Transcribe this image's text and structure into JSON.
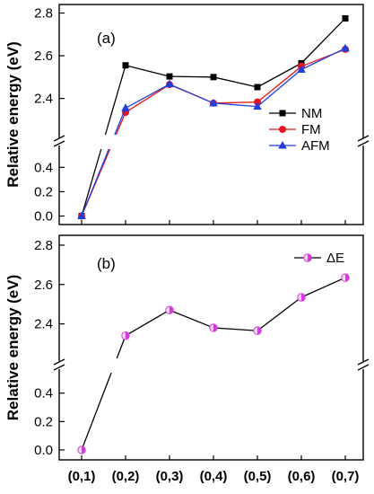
{
  "chart_data": [
    {
      "type": "line",
      "panel_label": "(a)",
      "ylabel": "Relative energy (eV)",
      "categories": [
        "(0,1)",
        "(0,2)",
        "(0,3)",
        "(0,4)",
        "(0,5)",
        "(0,6)",
        "(0,7)"
      ],
      "axis_break": {
        "lower_ylim": [
          -0.07,
          0.55
        ],
        "upper_ylim": [
          2.23,
          2.84
        ]
      },
      "yticks_lower": [
        "0.0",
        "0.2",
        "0.4"
      ],
      "yticks_upper": [
        "2.4",
        "2.6",
        "2.8"
      ],
      "legend_position": "right",
      "series": [
        {
          "name": "NM",
          "marker": "square",
          "color": "#000000",
          "values": [
            0.0,
            2.555,
            2.503,
            2.5,
            2.453,
            2.565,
            2.775
          ]
        },
        {
          "name": "FM",
          "marker": "circle",
          "color": "#e8141c",
          "values": [
            0.0,
            2.335,
            2.465,
            2.378,
            2.383,
            2.55,
            2.63
          ]
        },
        {
          "name": "AFM",
          "marker": "triangle",
          "color": "#1f3ee0",
          "values": [
            0.0,
            2.355,
            2.467,
            2.378,
            2.362,
            2.535,
            2.635
          ]
        }
      ]
    },
    {
      "type": "line",
      "panel_label": "(b)",
      "ylabel": "Relative energy (eV)",
      "categories": [
        "(0,1)",
        "(0,2)",
        "(0,3)",
        "(0,4)",
        "(0,5)",
        "(0,6)",
        "(0,7)"
      ],
      "axis_break": {
        "lower_ylim": [
          -0.07,
          0.55
        ],
        "upper_ylim": [
          2.22,
          2.85
        ]
      },
      "yticks_lower": [
        "0.0",
        "0.2",
        "0.4"
      ],
      "yticks_upper": [
        "2.4",
        "2.6",
        "2.8"
      ],
      "legend_position": "top-right",
      "series": [
        {
          "name": "ΔE",
          "marker": "half-filled-circle",
          "color": "#d838e0",
          "values": [
            0.0,
            2.34,
            2.47,
            2.38,
            2.365,
            2.535,
            2.635
          ]
        }
      ]
    }
  ]
}
